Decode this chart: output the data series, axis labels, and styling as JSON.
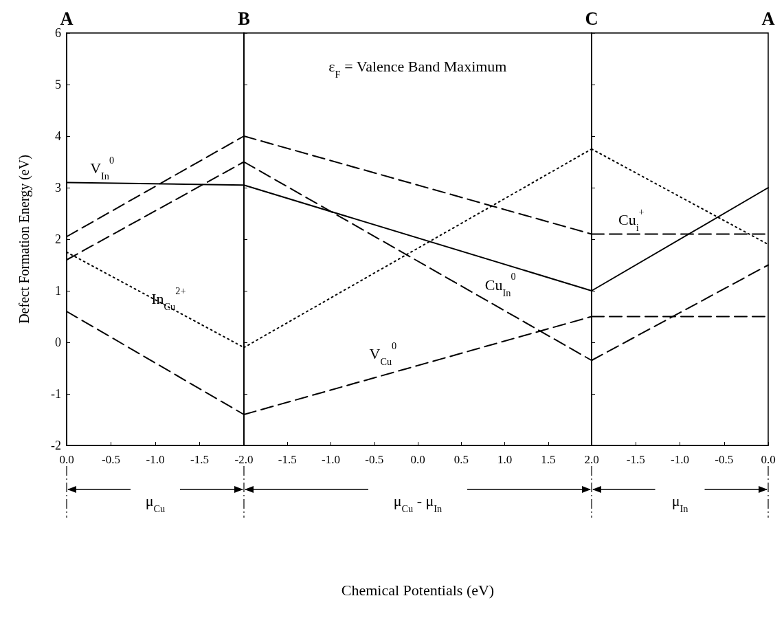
{
  "chart_data": [
    {
      "type": "line",
      "xlabel": "μ$_{Cu}$",
      "ylabel": "Defect Formation Energy (eV)",
      "x": [
        0,
        -2
      ],
      "xlim": [
        0,
        -2
      ],
      "xticks": [
        {
          "value": 0,
          "label": "0.0"
        },
        {
          "value": -0.5,
          "label": "-0.5"
        },
        {
          "value": -1,
          "label": "-1.0"
        },
        {
          "value": -1.5,
          "label": "-1.5"
        },
        {
          "value": -2,
          "label": "-2.0"
        }
      ],
      "ylim": [
        -2,
        6
      ],
      "yticks": [
        -2,
        -1,
        0,
        1,
        2,
        3,
        4,
        5,
        6
      ],
      "series": [
        {
          "name": "V$_{In}$$^{0}$",
          "color": "#000000",
          "line_style": "solid",
          "values": [
            3.1,
            3.05
          ]
        },
        {
          "color": "#000000",
          "line_style": "dashed",
          "values": [
            1.6,
            3.5
          ]
        },
        {
          "color": "#000000",
          "line_style": "dashed",
          "values": [
            2.05,
            4.0
          ]
        },
        {
          "name": "In$_{Cu}$$^{2+}$",
          "color": "#000000",
          "line_style": "dotted",
          "values": [
            1.75,
            -0.1
          ]
        },
        {
          "color": "#000000",
          "line_style": "dashed",
          "values": [
            0.6,
            -1.4
          ]
        }
      ],
      "annotations": [
        "A",
        "B"
      ],
      "grid": false,
      "legend": false,
      "marker": "none"
    },
    {
      "type": "line",
      "xlabel": "μ$_{Cu}$ - μ$_{In}$",
      "x": [
        -2,
        2
      ],
      "xlim": [
        -2,
        2
      ],
      "xticks": [
        {
          "value": -2,
          "label": null
        },
        {
          "value": -1.5,
          "label": "-1.5"
        },
        {
          "value": -1,
          "label": "-1.0"
        },
        {
          "value": -0.5,
          "label": "-0.5"
        },
        {
          "value": 0,
          "label": "0.0"
        },
        {
          "value": 0.5,
          "label": "0.5"
        },
        {
          "value": 1,
          "label": "1.0"
        },
        {
          "value": 1.5,
          "label": "1.5"
        },
        {
          "value": 2,
          "label": "2.0"
        }
      ],
      "ylim": [
        -2,
        6
      ],
      "yticks": [
        {
          "value": -2,
          "label": null
        },
        {
          "value": -1,
          "label": null
        },
        {
          "value": 0,
          "label": null
        },
        {
          "value": 1,
          "label": null
        },
        {
          "value": 2,
          "label": null
        },
        {
          "value": 3,
          "label": null
        },
        {
          "value": 4,
          "label": null
        },
        {
          "value": 5,
          "label": null
        },
        {
          "value": 6,
          "label": null
        }
      ],
      "tick_labels": "x",
      "series": [
        {
          "color": "#000000",
          "line_style": "solid",
          "values": [
            3.05,
            1.0
          ]
        },
        {
          "name": "Cu$_{In}$$^{0}$",
          "color": "#000000",
          "line_style": "dashed",
          "values": [
            3.5,
            -0.35
          ]
        },
        {
          "color": "#000000",
          "line_style": "dashed",
          "values": [
            4.0,
            2.1
          ]
        },
        {
          "color": "#000000",
          "line_style": "dotted",
          "values": [
            -0.1,
            3.75
          ]
        },
        {
          "name": "V$_{Cu}$$^{0}$",
          "color": "#000000",
          "line_style": "dashed",
          "values": [
            -1.4,
            0.5
          ]
        }
      ],
      "annotations": [
        "C",
        "ε$_{F}$ = Valence Band Maximum",
        "Chemical Potentials (eV)"
      ],
      "grid": false,
      "legend": false,
      "marker": "none"
    },
    {
      "type": "line",
      "xlabel": "μ$_{In}$",
      "x": [
        -2,
        0
      ],
      "xlim": [
        -2,
        0
      ],
      "xticks": [
        {
          "value": -2,
          "label": null
        },
        {
          "value": -1.5,
          "label": "-1.5"
        },
        {
          "value": -1,
          "label": "-1.0"
        },
        {
          "value": -0.5,
          "label": "-0.5"
        },
        {
          "value": 0,
          "label": "0.0"
        }
      ],
      "ylim": [
        -2,
        6
      ],
      "yticks": [
        {
          "value": -2,
          "label": null
        },
        {
          "value": -1,
          "label": null
        },
        {
          "value": 0,
          "label": null
        },
        {
          "value": 1,
          "label": null
        },
        {
          "value": 2,
          "label": null
        },
        {
          "value": 3,
          "label": null
        },
        {
          "value": 4,
          "label": null
        },
        {
          "value": 5,
          "label": null
        },
        {
          "value": 6,
          "label": null
        }
      ],
      "tick_labels": "x",
      "series": [
        {
          "color": "#000000",
          "line_style": "solid",
          "values": [
            1.0,
            3.0
          ]
        },
        {
          "color": "#000000",
          "line_style": "dashed",
          "values": [
            -0.35,
            1.5
          ]
        },
        {
          "name": "Cu$_{i}$$^{+}$",
          "color": "#000000",
          "line_style": "dashed",
          "values": [
            2.1,
            2.1
          ]
        },
        {
          "color": "#000000",
          "line_style": "dotted",
          "values": [
            3.75,
            1.9
          ]
        },
        {
          "color": "#000000",
          "line_style": "dashed",
          "values": [
            0.5,
            0.5
          ]
        }
      ],
      "annotations": [
        "A"
      ],
      "grid": false,
      "legend": false,
      "marker": "none"
    }
  ]
}
